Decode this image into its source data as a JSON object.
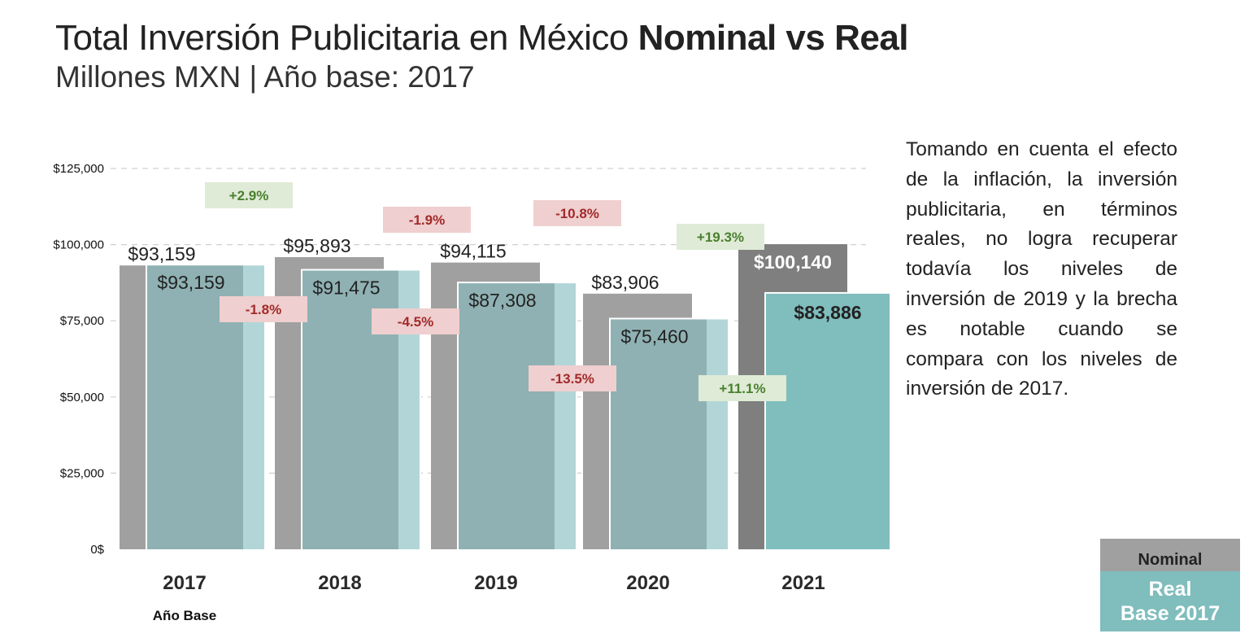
{
  "header": {
    "title_regular": "Total Inversión Publicitaria en México ",
    "title_bold": "Nominal vs Real",
    "subtitle": "Millones MXN | Año base: 2017"
  },
  "description": "Tomando en cuenta el efecto de la inflación,  la inversión publicitaria, en términos reales, no logra recuperar todavía los niveles de inversión de 2019 y la brecha es notable cuando se compara con los niveles de inversión de 2017.",
  "legend": {
    "nominal": "Nominal",
    "real_line1": "Real",
    "real_line2": "Base 2017"
  },
  "colors": {
    "nominal": "#a0a0a0",
    "nominal_highlight": "#7f7f7f",
    "real": "#8fb1b3",
    "real_highlight": "#80bdbd",
    "real_overlay": "#b2d6d8",
    "positive_bg": "#dfebd6",
    "positive_text": "#4a7f2e",
    "negative_bg": "#efcfcf",
    "negative_text": "#a32a2a",
    "grid": "#d0d0d0"
  },
  "chart_data": {
    "type": "bar",
    "title": "Total Inversión Publicitaria en México Nominal vs Real",
    "subtitle": "Millones MXN | Año base: 2017",
    "xlabel": "",
    "ylabel": "",
    "ylim": [
      0,
      125000
    ],
    "grid": true,
    "legend_position": "bottom-right",
    "categories": [
      "2017",
      "2018",
      "2019",
      "2020",
      "2021"
    ],
    "category_notes": [
      "Año Base",
      "",
      "",
      "",
      ""
    ],
    "yticks": [
      0,
      25000,
      50000,
      75000,
      100000,
      125000
    ],
    "ytick_labels": [
      "0$",
      "$25,000",
      "$50,000",
      "$75,000",
      "$100,000",
      "$125,000"
    ],
    "series": [
      {
        "name": "Nominal",
        "values": [
          93159,
          95893,
          94115,
          83906,
          100140
        ],
        "labels": [
          "$93,159",
          "$95,893",
          "$94,115",
          "$83,906",
          "$100,140"
        ],
        "pct_change": [
          "",
          "+2.9%",
          "-1.9%",
          "-10.8%",
          "+19.3%"
        ]
      },
      {
        "name": "Real Base 2017",
        "values": [
          93159,
          91475,
          87308,
          75460,
          83886
        ],
        "labels": [
          "$93,159",
          "$91,475",
          "$87,308",
          "$75,460",
          "$83,886"
        ],
        "pct_change": [
          "",
          "-1.8%",
          "-4.5%",
          "-13.5%",
          "+11.1%"
        ]
      }
    ]
  }
}
